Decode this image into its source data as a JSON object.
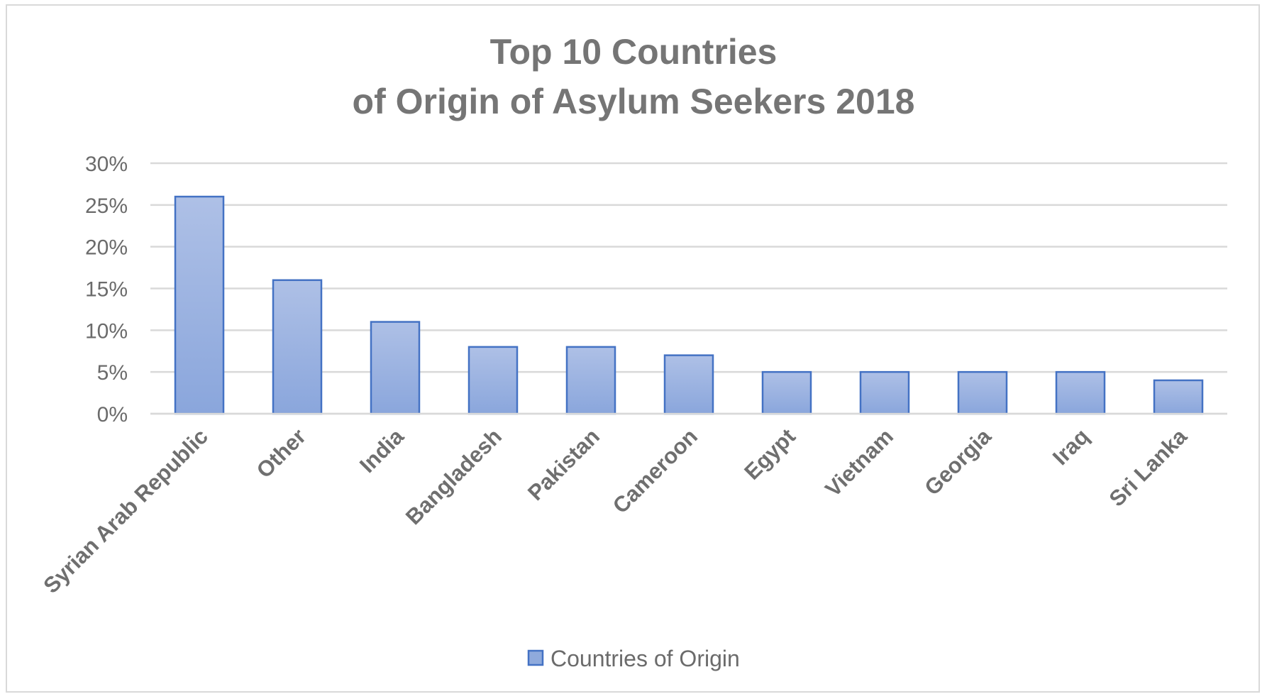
{
  "chart_data": {
    "type": "bar",
    "title": "Top 10 Countries\nof Origin of Asylum Seekers 2018",
    "title_lines": [
      "Top 10 Countries",
      "of Origin of Asylum Seekers 2018"
    ],
    "categories": [
      "Syrian Arab Republic",
      "Other",
      "India",
      "Bangladesh",
      "Pakistan",
      "Cameroon",
      "Egypt",
      "Vietnam",
      "Georgia",
      "Iraq",
      "Sri Lanka"
    ],
    "series": [
      {
        "name": "Countries of Origin",
        "values": [
          26,
          16,
          11,
          8,
          8,
          7,
          5,
          5,
          5,
          5,
          4
        ],
        "color": "#8faadc",
        "edge_color": "#4472c4"
      }
    ],
    "ylim": [
      0,
      30
    ],
    "yticks": [
      0,
      5,
      10,
      15,
      20,
      25,
      30
    ],
    "ytick_labels": [
      "0%",
      "5%",
      "10%",
      "15%",
      "20%",
      "25%",
      "30%"
    ],
    "y_unit": "%",
    "xlabel": "",
    "ylabel": "",
    "grid": true,
    "legend_position": "bottom"
  }
}
